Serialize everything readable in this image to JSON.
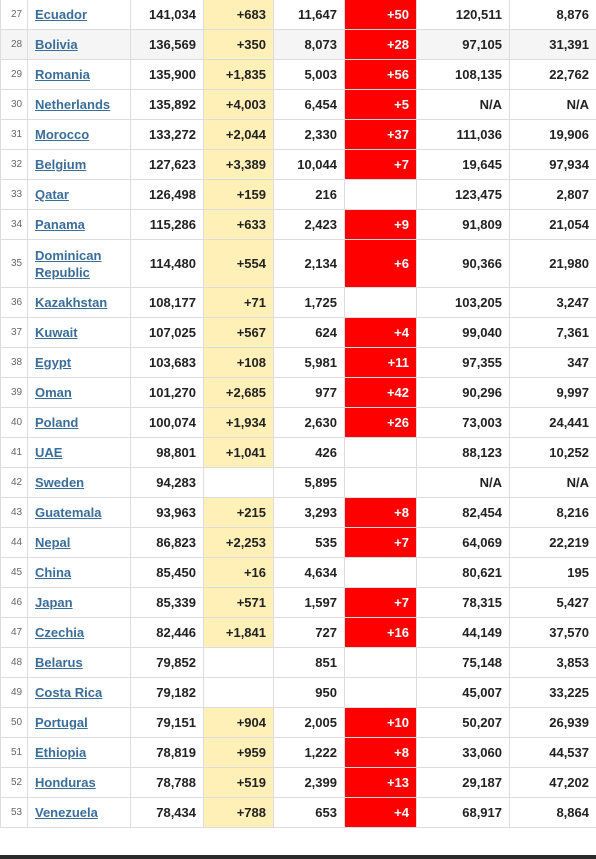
{
  "colors": {
    "new_cases_bg": "#fff0b8",
    "new_deaths_bg": "#ff0000",
    "link": "#3a6d99",
    "highlight_row": "#f5f5f5"
  },
  "rows": [
    {
      "rank": "27",
      "country": "Ecuador",
      "total": "141,034",
      "new_cases": "+683",
      "deaths": "11,647",
      "new_deaths": "+50",
      "recovered": "120,511",
      "active": "8,876"
    },
    {
      "rank": "28",
      "country": "Bolivia",
      "total": "136,569",
      "new_cases": "+350",
      "deaths": "8,073",
      "new_deaths": "+28",
      "recovered": "97,105",
      "active": "31,391"
    },
    {
      "rank": "29",
      "country": "Romania",
      "total": "135,900",
      "new_cases": "+1,835",
      "deaths": "5,003",
      "new_deaths": "+56",
      "recovered": "108,135",
      "active": "22,762"
    },
    {
      "rank": "30",
      "country": "Netherlands",
      "total": "135,892",
      "new_cases": "+4,003",
      "deaths": "6,454",
      "new_deaths": "+5",
      "recovered": "N/A",
      "active": "N/A"
    },
    {
      "rank": "31",
      "country": "Morocco",
      "total": "133,272",
      "new_cases": "+2,044",
      "deaths": "2,330",
      "new_deaths": "+37",
      "recovered": "111,036",
      "active": "19,906"
    },
    {
      "rank": "32",
      "country": "Belgium",
      "total": "127,623",
      "new_cases": "+3,389",
      "deaths": "10,044",
      "new_deaths": "+7",
      "recovered": "19,645",
      "active": "97,934"
    },
    {
      "rank": "33",
      "country": "Qatar",
      "total": "126,498",
      "new_cases": "+159",
      "deaths": "216",
      "new_deaths": "",
      "recovered": "123,475",
      "active": "2,807"
    },
    {
      "rank": "34",
      "country": "Panama",
      "total": "115,286",
      "new_cases": "+633",
      "deaths": "2,423",
      "new_deaths": "+9",
      "recovered": "91,809",
      "active": "21,054"
    },
    {
      "rank": "35",
      "country": "Dominican Republic",
      "total": "114,480",
      "new_cases": "+554",
      "deaths": "2,134",
      "new_deaths": "+6",
      "recovered": "90,366",
      "active": "21,980"
    },
    {
      "rank": "36",
      "country": "Kazakhstan",
      "total": "108,177",
      "new_cases": "+71",
      "deaths": "1,725",
      "new_deaths": "",
      "recovered": "103,205",
      "active": "3,247"
    },
    {
      "rank": "37",
      "country": "Kuwait",
      "total": "107,025",
      "new_cases": "+567",
      "deaths": "624",
      "new_deaths": "+4",
      "recovered": "99,040",
      "active": "7,361"
    },
    {
      "rank": "38",
      "country": "Egypt",
      "total": "103,683",
      "new_cases": "+108",
      "deaths": "5,981",
      "new_deaths": "+11",
      "recovered": "97,355",
      "active": "347"
    },
    {
      "rank": "39",
      "country": "Oman",
      "total": "101,270",
      "new_cases": "+2,685",
      "deaths": "977",
      "new_deaths": "+42",
      "recovered": "90,296",
      "active": "9,997"
    },
    {
      "rank": "40",
      "country": "Poland",
      "total": "100,074",
      "new_cases": "+1,934",
      "deaths": "2,630",
      "new_deaths": "+26",
      "recovered": "73,003",
      "active": "24,441"
    },
    {
      "rank": "41",
      "country": "UAE",
      "total": "98,801",
      "new_cases": "+1,041",
      "deaths": "426",
      "new_deaths": "",
      "recovered": "88,123",
      "active": "10,252"
    },
    {
      "rank": "42",
      "country": "Sweden",
      "total": "94,283",
      "new_cases": "",
      "deaths": "5,895",
      "new_deaths": "",
      "recovered": "N/A",
      "active": "N/A"
    },
    {
      "rank": "43",
      "country": "Guatemala",
      "total": "93,963",
      "new_cases": "+215",
      "deaths": "3,293",
      "new_deaths": "+8",
      "recovered": "82,454",
      "active": "8,216"
    },
    {
      "rank": "44",
      "country": "Nepal",
      "total": "86,823",
      "new_cases": "+2,253",
      "deaths": "535",
      "new_deaths": "+7",
      "recovered": "64,069",
      "active": "22,219"
    },
    {
      "rank": "45",
      "country": "China",
      "total": "85,450",
      "new_cases": "+16",
      "deaths": "4,634",
      "new_deaths": "",
      "recovered": "80,621",
      "active": "195"
    },
    {
      "rank": "46",
      "country": "Japan",
      "total": "85,339",
      "new_cases": "+571",
      "deaths": "1,597",
      "new_deaths": "+7",
      "recovered": "78,315",
      "active": "5,427"
    },
    {
      "rank": "47",
      "country": "Czechia",
      "total": "82,446",
      "new_cases": "+1,841",
      "deaths": "727",
      "new_deaths": "+16",
      "recovered": "44,149",
      "active": "37,570"
    },
    {
      "rank": "48",
      "country": "Belarus",
      "total": "79,852",
      "new_cases": "",
      "deaths": "851",
      "new_deaths": "",
      "recovered": "75,148",
      "active": "3,853"
    },
    {
      "rank": "49",
      "country": "Costa Rica",
      "total": "79,182",
      "new_cases": "",
      "deaths": "950",
      "new_deaths": "",
      "recovered": "45,007",
      "active": "33,225"
    },
    {
      "rank": "50",
      "country": "Portugal",
      "total": "79,151",
      "new_cases": "+904",
      "deaths": "2,005",
      "new_deaths": "+10",
      "recovered": "50,207",
      "active": "26,939"
    },
    {
      "rank": "51",
      "country": "Ethiopia",
      "total": "78,819",
      "new_cases": "+959",
      "deaths": "1,222",
      "new_deaths": "+8",
      "recovered": "33,060",
      "active": "44,537"
    },
    {
      "rank": "52",
      "country": "Honduras",
      "total": "78,788",
      "new_cases": "+519",
      "deaths": "2,399",
      "new_deaths": "+13",
      "recovered": "29,187",
      "active": "47,202"
    },
    {
      "rank": "53",
      "country": "Venezuela",
      "total": "78,434",
      "new_cases": "+788",
      "deaths": "653",
      "new_deaths": "+4",
      "recovered": "68,917",
      "active": "8,864"
    }
  ]
}
